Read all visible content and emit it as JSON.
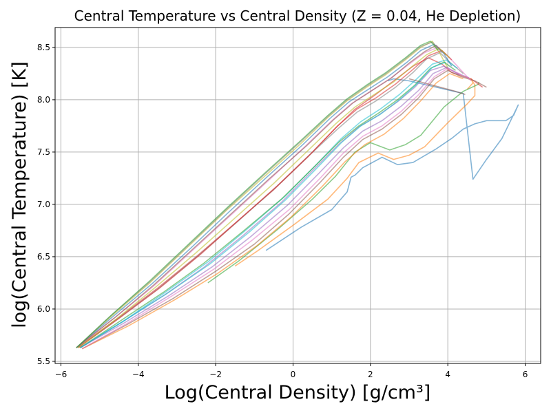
{
  "chart_data": {
    "type": "line",
    "title": "Central Temperature vs Central Density (Z = 0.04, He Depletion)",
    "xlabel": "Log(Central Density) [g/cm³]",
    "ylabel": "log(Central Temperature) [K]",
    "xlim": [
      -6.15,
      6.4
    ],
    "ylim": [
      5.48,
      8.69
    ],
    "xticks": [
      -6,
      -4,
      -2,
      0,
      2,
      4,
      6
    ],
    "yticks": [
      5.5,
      6.0,
      6.5,
      7.0,
      7.5,
      8.0,
      8.5
    ],
    "xtick_labels": [
      "−6",
      "−4",
      "−2",
      "0",
      "2",
      "4",
      "6"
    ],
    "ytick_labels": [
      "5.5",
      "6.0",
      "6.5",
      "7.0",
      "7.5",
      "8.0",
      "8.5"
    ],
    "grid": true,
    "legend": "none",
    "series": [
      {
        "color": "#1f77b4",
        "x": [
          -0.7,
          0.2,
          1.0,
          1.4,
          1.5,
          1.6,
          1.8,
          2.3,
          2.7,
          3.1,
          3.7,
          4.1,
          4.4,
          4.7,
          5.0,
          5.3,
          5.5,
          5.7,
          5.82,
          5.78,
          5.4,
          5.0,
          4.65,
          4.4,
          3.0,
          2.6,
          2.45
        ],
        "y": [
          6.56,
          6.78,
          6.95,
          7.12,
          7.26,
          7.28,
          7.35,
          7.45,
          7.38,
          7.4,
          7.53,
          7.63,
          7.72,
          7.77,
          7.8,
          7.8,
          7.8,
          7.85,
          7.95,
          7.92,
          7.63,
          7.43,
          7.24,
          8.06,
          8.18,
          8.2,
          8.18
        ]
      },
      {
        "color": "#ff7f0e",
        "x": [
          -1.5,
          -0.9,
          0,
          0.9,
          1.4,
          1.7,
          2.2,
          2.6,
          3.0,
          3.4,
          4.0,
          4.5,
          4.7,
          4.7,
          4.6,
          4.65,
          4.5
        ],
        "y": [
          6.41,
          6.56,
          6.8,
          7.05,
          7.25,
          7.4,
          7.49,
          7.43,
          7.47,
          7.55,
          7.78,
          7.96,
          8.04,
          8.14,
          8.2,
          8.16,
          8.1
        ]
      },
      {
        "color": "#2ca02c",
        "x": [
          -2.2,
          -1.4,
          -0.4,
          0.5,
          1.1,
          1.6,
          2.0,
          2.5,
          2.9,
          3.3,
          3.9,
          4.4,
          4.8,
          4.8
        ],
        "y": [
          6.25,
          6.46,
          6.76,
          7.05,
          7.27,
          7.5,
          7.59,
          7.52,
          7.57,
          7.66,
          7.93,
          8.08,
          8.15,
          8.17
        ]
      },
      {
        "color": "#d62728",
        "x": [
          -5.55,
          -4.5,
          -3.5,
          -2.5,
          -1.5,
          -0.5,
          0.4,
          1.1,
          1.6,
          2.1,
          2.6,
          3.1,
          3.5,
          3.85,
          4.1,
          4.6,
          4.9
        ],
        "y": [
          5.64,
          5.92,
          6.2,
          6.5,
          6.82,
          7.14,
          7.46,
          7.73,
          7.91,
          8.04,
          8.18,
          8.32,
          8.4,
          8.34,
          8.26,
          8.2,
          8.12
        ]
      },
      {
        "color": "#9467bd",
        "x": [
          -5.5,
          -4.4,
          -3.3,
          -2.3,
          -1.3,
          -0.3,
          0.55,
          1.2,
          1.7,
          2.2,
          2.7,
          3.15,
          3.55,
          3.9,
          4.2,
          4.55
        ],
        "y": [
          5.63,
          5.88,
          6.14,
          6.4,
          6.7,
          7.02,
          7.34,
          7.58,
          7.74,
          7.85,
          7.98,
          8.12,
          8.28,
          8.32,
          8.26,
          8.21
        ]
      },
      {
        "color": "#8c564b",
        "x": [
          -5.45,
          -4.3,
          -3.1,
          -2.0,
          -1.0,
          -0.1,
          0.7,
          1.3,
          1.8,
          2.3,
          2.8,
          3.25,
          3.65,
          4.0,
          4.35,
          4.7,
          5.0
        ],
        "y": [
          5.62,
          5.85,
          6.1,
          6.36,
          6.62,
          6.91,
          7.21,
          7.45,
          7.62,
          7.72,
          7.86,
          8.02,
          8.2,
          8.28,
          8.22,
          8.18,
          8.12
        ]
      },
      {
        "color": "#e377c2",
        "x": [
          -5.6,
          -4.6,
          -3.6,
          -2.6,
          -1.6,
          -0.6,
          0.3,
          1.0,
          1.5,
          2.0,
          2.5,
          3.0,
          3.4,
          3.75,
          4.0,
          4.3,
          4.6
        ],
        "y": [
          5.63,
          5.92,
          6.22,
          6.56,
          6.9,
          7.24,
          7.55,
          7.8,
          7.96,
          8.08,
          8.2,
          8.34,
          8.45,
          8.5,
          8.42,
          8.3,
          8.18
        ]
      },
      {
        "color": "#7f7f7f",
        "x": [
          -5.55,
          -4.55,
          -3.5,
          -2.45,
          -1.45,
          -0.45,
          0.45,
          1.15,
          1.65,
          2.15,
          2.65,
          3.1,
          3.45,
          3.8,
          4.05,
          4.4
        ],
        "y": [
          5.63,
          5.9,
          6.19,
          6.51,
          6.83,
          7.16,
          7.48,
          7.72,
          7.88,
          7.99,
          8.12,
          8.26,
          8.39,
          8.45,
          8.36,
          8.25
        ]
      },
      {
        "color": "#bcbd22",
        "x": [
          -5.6,
          -4.7,
          -3.7,
          -2.7,
          -1.7,
          -0.7,
          0.2,
          0.9,
          1.4,
          1.9,
          2.4,
          2.9,
          3.3,
          3.6,
          3.8,
          4.0
        ],
        "y": [
          5.63,
          5.93,
          6.25,
          6.6,
          6.95,
          7.28,
          7.58,
          7.83,
          7.99,
          8.12,
          8.24,
          8.38,
          8.5,
          8.56,
          8.44,
          8.3
        ]
      },
      {
        "color": "#17becf",
        "x": [
          -5.5,
          -4.4,
          -3.3,
          -2.2,
          -1.2,
          -0.2,
          0.6,
          1.25,
          1.75,
          2.25,
          2.75,
          3.2,
          3.6,
          3.95,
          4.25
        ],
        "y": [
          5.63,
          5.88,
          6.16,
          6.45,
          6.76,
          7.08,
          7.38,
          7.63,
          7.79,
          7.91,
          8.05,
          8.2,
          8.34,
          8.38,
          8.3
        ]
      },
      {
        "color": "#1f77b4",
        "x": [
          -5.6,
          -4.65,
          -3.65,
          -2.65,
          -1.65,
          -0.65,
          0.25,
          0.95,
          1.45,
          1.95,
          2.45,
          2.95,
          3.3,
          3.65,
          3.9,
          4.1
        ],
        "y": [
          5.63,
          5.93,
          6.24,
          6.58,
          6.93,
          7.27,
          7.57,
          7.82,
          7.98,
          8.1,
          8.22,
          8.36,
          8.47,
          8.53,
          8.44,
          8.32
        ]
      },
      {
        "color": "#ff7f0e",
        "x": [
          -5.45,
          -4.25,
          -3.05,
          -1.95,
          -0.95,
          -0.05,
          0.75,
          1.35,
          1.85,
          2.35,
          2.85,
          3.3,
          3.7,
          4.05,
          4.4
        ],
        "y": [
          5.62,
          5.84,
          6.09,
          6.34,
          6.6,
          6.88,
          7.17,
          7.41,
          7.57,
          7.67,
          7.82,
          7.99,
          8.16,
          8.25,
          8.2
        ]
      },
      {
        "color": "#2ca02c",
        "x": [
          -5.5,
          -4.45,
          -3.35,
          -2.3,
          -1.3,
          -0.3,
          0.55,
          1.2,
          1.7,
          2.2,
          2.7,
          3.15,
          3.55,
          3.9,
          4.2
        ],
        "y": [
          5.63,
          5.89,
          6.16,
          6.44,
          6.74,
          7.05,
          7.36,
          7.6,
          7.75,
          7.87,
          8.0,
          8.14,
          8.3,
          8.36,
          8.28
        ]
      },
      {
        "color": "#d62728",
        "x": [
          -5.55,
          -4.5,
          -3.45,
          -2.4,
          -1.4,
          -0.4,
          0.5,
          1.15,
          1.65,
          2.15,
          2.65,
          3.1,
          3.5,
          3.85,
          4.1
        ],
        "y": [
          5.63,
          5.91,
          6.2,
          6.52,
          6.85,
          7.18,
          7.5,
          7.75,
          7.91,
          8.02,
          8.15,
          8.29,
          8.42,
          8.47,
          8.38
        ]
      },
      {
        "color": "#9467bd",
        "x": [
          -5.5,
          -4.35,
          -3.2,
          -2.1,
          -1.1,
          -0.15,
          0.65,
          1.3,
          1.8,
          2.3,
          2.8,
          3.25,
          3.62,
          3.98,
          4.3
        ],
        "y": [
          5.63,
          5.87,
          6.13,
          6.4,
          6.69,
          6.99,
          7.29,
          7.54,
          7.7,
          7.8,
          7.94,
          8.09,
          8.25,
          8.31,
          8.24
        ]
      },
      {
        "color": "#e377c2",
        "x": [
          -5.45,
          -4.3,
          -3.15,
          -2.05,
          -1.05,
          -0.1,
          0.7,
          1.3,
          1.8,
          2.3,
          2.8,
          3.25,
          3.65,
          4.0,
          4.35
        ],
        "y": [
          5.62,
          5.86,
          6.12,
          6.38,
          6.66,
          6.95,
          7.25,
          7.49,
          7.65,
          7.75,
          7.89,
          8.05,
          8.22,
          8.3,
          8.24
        ]
      },
      {
        "color": "#8c564b",
        "x": [
          -5.6,
          -4.6,
          -3.6,
          -2.6,
          -1.6,
          -0.6,
          0.35,
          1.05,
          1.55,
          2.05,
          2.55,
          3.0,
          3.4,
          3.7,
          3.95
        ],
        "y": [
          5.63,
          5.92,
          6.23,
          6.57,
          6.91,
          7.25,
          7.56,
          7.81,
          7.97,
          8.09,
          8.21,
          8.35,
          8.46,
          8.52,
          8.43
        ]
      },
      {
        "color": "#bcbd22",
        "x": [
          -5.55,
          -4.55,
          -3.55,
          -2.5,
          -1.5,
          -0.5,
          0.4,
          1.1,
          1.6,
          2.1,
          2.6,
          3.05,
          3.45,
          3.78,
          4.05
        ],
        "y": [
          5.63,
          5.91,
          6.21,
          6.54,
          6.87,
          7.2,
          7.52,
          7.77,
          7.93,
          8.05,
          8.17,
          8.31,
          8.43,
          8.49,
          8.4
        ]
      },
      {
        "color": "#17becf",
        "x": [
          -5.5,
          -4.4,
          -3.25,
          -2.15,
          -1.15,
          -0.2,
          0.6,
          1.25,
          1.75,
          2.25,
          2.75,
          3.2,
          3.6,
          3.95
        ],
        "y": [
          5.63,
          5.88,
          6.15,
          6.43,
          6.73,
          7.04,
          7.34,
          7.59,
          7.75,
          7.86,
          8.0,
          8.15,
          8.31,
          8.36
        ]
      },
      {
        "color": "#7f7f7f",
        "x": [
          -5.6,
          -4.7,
          -3.7,
          -2.7,
          -1.7,
          -0.7,
          0.2,
          0.9,
          1.4,
          1.9,
          2.4,
          2.9,
          3.3,
          3.6,
          3.85
        ],
        "y": [
          5.63,
          5.94,
          6.26,
          6.61,
          6.96,
          7.3,
          7.6,
          7.84,
          8.0,
          8.13,
          8.25,
          8.39,
          8.51,
          8.55,
          8.45
        ]
      },
      {
        "color": "#2ca02c",
        "x": [
          -5.6,
          -4.7,
          -3.7,
          -2.7,
          -1.7,
          -0.7,
          0.2,
          0.9,
          1.4,
          1.9,
          2.4,
          2.9,
          3.3,
          3.55,
          3.75
        ],
        "y": [
          5.63,
          5.94,
          6.27,
          6.62,
          6.97,
          7.31,
          7.61,
          7.85,
          8.01,
          8.14,
          8.26,
          8.4,
          8.52,
          8.56,
          8.47
        ]
      },
      {
        "color": "#8c564b",
        "x": [
          3.0,
          3.3,
          3.6,
          3.9,
          4.2,
          4.45
        ],
        "y": [
          8.2,
          8.17,
          8.14,
          8.11,
          8.08,
          8.05
        ]
      }
    ]
  }
}
